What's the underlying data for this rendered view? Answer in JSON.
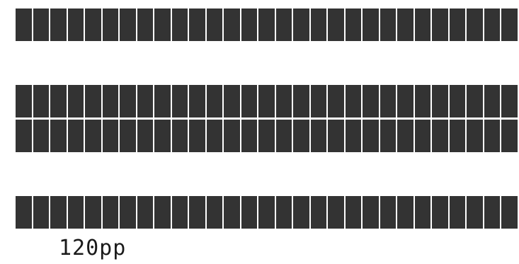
{
  "colors": {
    "cell": "#333333",
    "background": "#ffffff",
    "caption": "#1a1a1a"
  },
  "caption": "120pp"
}
